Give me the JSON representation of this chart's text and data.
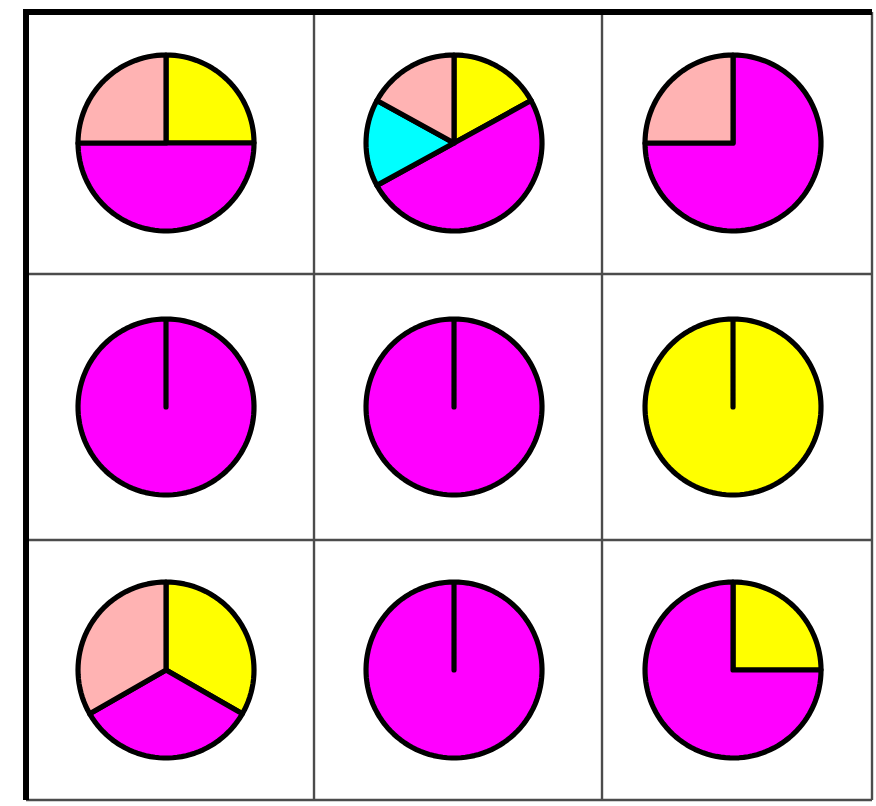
{
  "chart_data": [
    {
      "type": "pie",
      "categories": [
        null,
        null,
        null
      ],
      "values": [
        25,
        50,
        25
      ],
      "colors": [
        "#ffff00",
        "#ff00ff",
        "#ffb3b3"
      ]
    },
    {
      "type": "pie",
      "categories": [
        null,
        null,
        null,
        null
      ],
      "values": [
        17,
        50,
        16,
        17
      ],
      "colors": [
        "#ffff00",
        "#ff00ff",
        "#00ffff",
        "#ffb3b3"
      ]
    },
    {
      "type": "pie",
      "categories": [
        null,
        null
      ],
      "values": [
        75,
        25
      ],
      "colors": [
        "#ff00ff",
        "#ffb3b3"
      ]
    },
    {
      "type": "pie",
      "categories": [
        null
      ],
      "values": [
        100
      ],
      "colors": [
        "#ff00ff"
      ]
    },
    {
      "type": "pie",
      "categories": [
        null
      ],
      "values": [
        100
      ],
      "colors": [
        "#ff00ff"
      ]
    },
    {
      "type": "pie",
      "categories": [
        null
      ],
      "values": [
        100
      ],
      "colors": [
        "#ffff00"
      ]
    },
    {
      "type": "pie",
      "categories": [
        null,
        null,
        null
      ],
      "values": [
        33.3,
        33.4,
        33.3
      ],
      "colors": [
        "#ffff00",
        "#ff00ff",
        "#ffb3b3"
      ]
    },
    {
      "type": "pie",
      "categories": [
        null
      ],
      "values": [
        100
      ],
      "colors": [
        "#ff00ff"
      ]
    },
    {
      "type": "pie",
      "categories": [
        null,
        null
      ],
      "values": [
        25,
        75
      ],
      "colors": [
        "#ffff00",
        "#ff00ff"
      ]
    }
  ]
}
